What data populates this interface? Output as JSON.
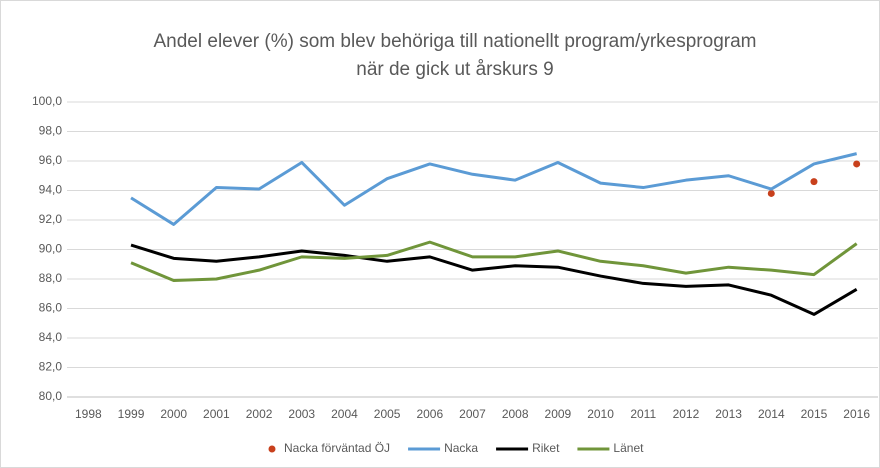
{
  "chart_data": {
    "type": "line",
    "title": [
      "Andel elever (%) som blev behöriga till nationellt program/yrkesprogram",
      "när de gick ut årskurs 9"
    ],
    "categories": [
      "1998",
      "1999",
      "2000",
      "2001",
      "2002",
      "2003",
      "2004",
      "2005",
      "2006",
      "2007",
      "2008",
      "2009",
      "2010",
      "2011",
      "2012",
      "2013",
      "2014",
      "2015",
      "2016"
    ],
    "series": [
      {
        "name": "Nacka förväntad ÖJ",
        "color": "#c8401c",
        "mode": "markers",
        "values": [
          null,
          null,
          null,
          null,
          null,
          null,
          null,
          null,
          null,
          null,
          null,
          null,
          null,
          null,
          null,
          null,
          93.8,
          94.6,
          95.8
        ]
      },
      {
        "name": "Nacka",
        "color": "#5b9bd5",
        "mode": "line",
        "values": [
          null,
          93.5,
          91.7,
          94.2,
          94.1,
          95.9,
          93.0,
          94.8,
          95.8,
          95.1,
          94.7,
          95.9,
          94.5,
          94.2,
          94.7,
          95.0,
          94.1,
          95.8,
          96.5
        ]
      },
      {
        "name": "Riket",
        "color": "#000000",
        "mode": "line",
        "values": [
          null,
          90.3,
          89.4,
          89.2,
          89.5,
          89.9,
          89.6,
          89.2,
          89.5,
          88.6,
          88.9,
          88.8,
          88.2,
          87.7,
          87.5,
          87.6,
          86.9,
          85.6,
          87.3
        ]
      },
      {
        "name": "Länet",
        "color": "#70953a",
        "mode": "line",
        "values": [
          null,
          89.1,
          87.9,
          88.0,
          88.6,
          89.5,
          89.4,
          89.6,
          90.5,
          89.5,
          89.5,
          89.9,
          89.2,
          88.9,
          88.4,
          88.8,
          88.6,
          88.3,
          90.4
        ]
      }
    ],
    "ylim": [
      80,
      100
    ],
    "yticks": [
      {
        "value": 80,
        "label": "80,0"
      },
      {
        "value": 82,
        "label": "82,0"
      },
      {
        "value": 84,
        "label": "84,0"
      },
      {
        "value": 86,
        "label": "86,0"
      },
      {
        "value": 88,
        "label": "88,0"
      },
      {
        "value": 90,
        "label": "90,0"
      },
      {
        "value": 92,
        "label": "92,0"
      },
      {
        "value": 94,
        "label": "94,0"
      },
      {
        "value": 96,
        "label": "96,0"
      },
      {
        "value": 98,
        "label": "98,0"
      },
      {
        "value": 100,
        "label": "100,0"
      }
    ],
    "grid": true,
    "legend": "bottom"
  }
}
